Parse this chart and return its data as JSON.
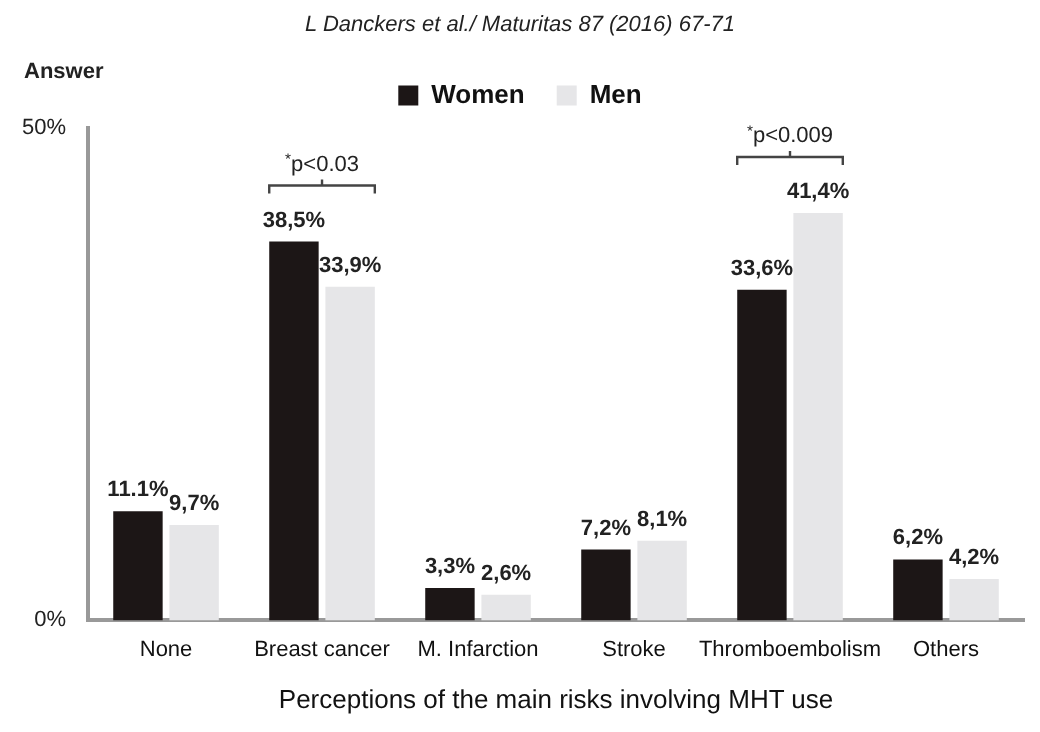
{
  "chart_data": {
    "type": "bar",
    "title": "L Danckers et al./ Maturitas 87 (2016) 67-71",
    "ylabel": "Answer",
    "xlabel": "Perceptions of the main risks involving MHT use",
    "categories": [
      "None",
      "Breast cancer",
      "M. Infarction",
      "Stroke",
      "Thromboembolism",
      "Others"
    ],
    "series": [
      {
        "name": "Women",
        "color": "#1c1616",
        "values": [
          11.1,
          38.5,
          3.3,
          7.2,
          33.6,
          6.2
        ],
        "value_labels": [
          "11.1%",
          "38,5%",
          "3,3%",
          "7,2%",
          "33,6%",
          "6,2%"
        ]
      },
      {
        "name": "Men",
        "color": "#e6e6e8",
        "values": [
          9.7,
          33.9,
          2.6,
          8.1,
          41.4,
          4.2
        ],
        "value_labels": [
          "9,7%",
          "33,9%",
          "2,6%",
          "8,1%",
          "41,4%",
          "4,2%"
        ]
      }
    ],
    "ylim": [
      0,
      50
    ],
    "yticks": [
      {
        "value": 0,
        "label": "0%"
      },
      {
        "value": 50,
        "label": "50%"
      }
    ],
    "grid": false,
    "legend": "top",
    "annotations": [
      "$^{*}$p<0.03",
      "$^{*}$p<0.009"
    ]
  }
}
